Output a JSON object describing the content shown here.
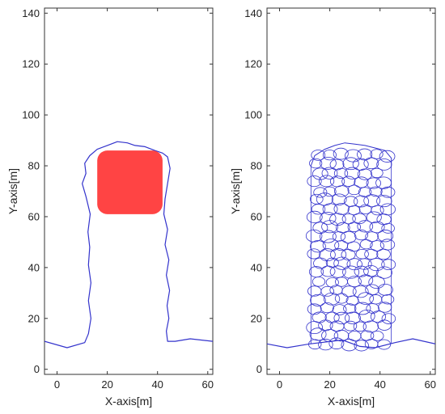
{
  "chart_data": [
    {
      "type": "line",
      "xlabel": "X-axis[m]",
      "ylabel": "Y-axis[m]",
      "xlim": [
        -5,
        62
      ],
      "ylim": [
        -2,
        142
      ],
      "xticks": [
        0,
        20,
        40,
        60
      ],
      "yticks": [
        0,
        20,
        40,
        60,
        80,
        100,
        120,
        140
      ],
      "line_color": "#3333cc",
      "fill_color": "#ff4444",
      "series": [
        {
          "kind": "outline",
          "points": [
            [
              -5,
              11
            ],
            [
              4,
              8.5
            ],
            [
              11,
              10.5
            ],
            [
              12.5,
              14
            ],
            [
              13.5,
              20
            ],
            [
              12.5,
              27
            ],
            [
              13.5,
              34
            ],
            [
              12.5,
              41
            ],
            [
              13,
              48
            ],
            [
              12.3,
              54
            ],
            [
              13.2,
              61
            ],
            [
              11.5,
              68
            ],
            [
              10,
              73
            ],
            [
              11.5,
              77
            ],
            [
              11,
              81
            ],
            [
              13,
              84
            ],
            [
              16,
              86.5
            ],
            [
              20,
              88
            ],
            [
              24,
              89.5
            ],
            [
              28,
              89
            ],
            [
              31,
              88
            ],
            [
              35,
              87.5
            ],
            [
              39,
              86
            ],
            [
              42,
              85
            ],
            [
              44,
              83.5
            ],
            [
              45,
              79
            ],
            [
              44,
              73
            ],
            [
              43,
              67
            ],
            [
              42.5,
              61
            ],
            [
              44,
              55
            ],
            [
              43,
              49
            ],
            [
              44.5,
              43
            ],
            [
              43.5,
              37
            ],
            [
              44.8,
              31
            ],
            [
              43.8,
              25
            ],
            [
              44.5,
              20
            ],
            [
              43.5,
              15
            ],
            [
              44,
              11
            ],
            [
              47,
              11
            ],
            [
              53,
              12
            ],
            [
              62,
              11
            ]
          ]
        },
        {
          "kind": "block",
          "rect": [
            16,
            61,
            42,
            86
          ],
          "corner_radius": 4
        }
      ]
    },
    {
      "type": "scatter",
      "xlabel": "X-axis[m]",
      "ylabel": "Y-axis[m]",
      "xlim": [
        -5,
        62
      ],
      "ylim": [
        -2,
        142
      ],
      "xticks": [
        0,
        20,
        40,
        60
      ],
      "yticks": [
        0,
        20,
        40,
        60,
        80,
        100,
        120,
        140
      ],
      "line_color": "#3333cc",
      "ground": [
        [
          -5,
          10
        ],
        [
          3,
          8.5
        ],
        [
          12,
          10
        ],
        [
          25,
          11.5
        ],
        [
          32,
          9
        ],
        [
          38,
          8.5
        ],
        [
          46,
          10.5
        ],
        [
          53,
          12
        ],
        [
          62,
          10
        ]
      ],
      "cell_region": {
        "x": [
          12.5,
          44.5
        ],
        "y": [
          8,
          86
        ],
        "crown": [
          [
            12.5,
            80
          ],
          [
            14,
            84
          ],
          [
            18,
            86.5
          ],
          [
            22,
            88
          ],
          [
            26,
            89
          ],
          [
            30,
            88.5
          ],
          [
            34,
            88
          ],
          [
            38,
            87
          ],
          [
            42,
            86
          ],
          [
            44.5,
            83
          ],
          [
            44.5,
            80
          ]
        ],
        "cells_across": 7,
        "cells_up": 22
      }
    }
  ]
}
